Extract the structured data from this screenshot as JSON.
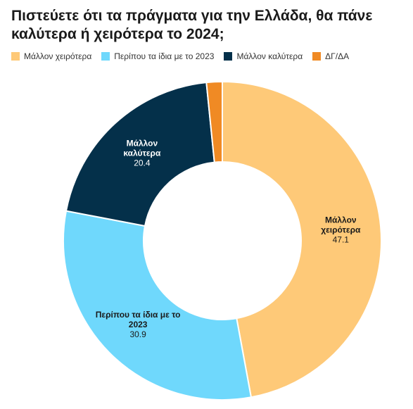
{
  "chart_data": {
    "type": "pie",
    "title": "Πιστεύετε ότι τα πράγματα για την Ελλάδα, θα πάνε καλύτερα ή χειρότερα το 2024;",
    "legend_position": "top-left",
    "categories": [
      "Μάλλον χειρότερα",
      "Περίπου τα ίδια με το 2023",
      "Μάλλον καλύτερα",
      "ΔΓ/ΔΑ"
    ],
    "values": [
      47.1,
      30.9,
      20.4,
      1.6
    ],
    "colors": [
      "#fec978",
      "#6fd8fc",
      "#04304a",
      "#f08a24"
    ],
    "label_colors": [
      "#1a1a1a",
      "#1a1a1a",
      "#ffffff",
      "#1a1a1a"
    ],
    "data_labels": [
      {
        "lines": [
          "Μάλλον",
          "χειρότερα"
        ],
        "value": "47.1"
      },
      {
        "lines": [
          "Περίπου τα ίδια με το",
          "2023"
        ],
        "value": "30.9"
      },
      {
        "lines": [
          "Μάλλον",
          "καλύτερα"
        ],
        "value": "20.4"
      },
      {
        "lines": [],
        "value": ""
      }
    ]
  }
}
